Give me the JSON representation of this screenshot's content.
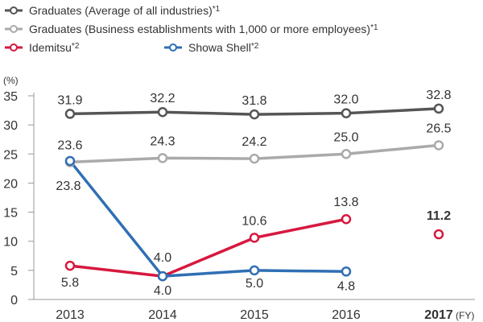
{
  "chart_data": {
    "type": "line",
    "x_unit": "(FY)",
    "y_unit": "(%)",
    "x": [
      "2013",
      "2014",
      "2015",
      "2016",
      "2017"
    ],
    "x_bold": [
      false,
      false,
      false,
      false,
      true
    ],
    "ylim": [
      0,
      35
    ],
    "yticks": [
      0,
      5,
      10,
      15,
      20,
      25,
      30,
      35
    ],
    "grid": false,
    "legend_position": "top-left",
    "series": [
      {
        "key": "grad_all",
        "name": "Graduates (Average of all industries)",
        "note": "*1",
        "color": "#555555",
        "values": [
          31.9,
          32.2,
          31.8,
          32.0,
          32.8
        ],
        "labels": [
          "31.9",
          "32.2",
          "31.8",
          "32.0",
          "32.8"
        ],
        "label_bold": [
          false,
          false,
          false,
          false,
          false
        ]
      },
      {
        "key": "grad_large",
        "name": "Graduates (Business establishments with 1,000 or more employees)",
        "note": "*1",
        "color": "#aaaaaa",
        "values": [
          23.6,
          24.3,
          24.2,
          25.0,
          26.5
        ],
        "labels": [
          "23.6",
          "24.3",
          "24.2",
          "25.0",
          "26.5"
        ],
        "label_bold": [
          false,
          false,
          false,
          false,
          false
        ]
      },
      {
        "key": "idemitsu",
        "name": "Idemitsu",
        "note": "*2",
        "color": "#d7183f",
        "values": [
          5.8,
          4.0,
          10.6,
          13.8,
          11.2
        ],
        "connect": [
          true,
          true,
          true,
          true,
          false
        ],
        "labels": [
          "5.8",
          "4.0",
          "10.6",
          "13.8",
          "11.2"
        ],
        "label_bold": [
          false,
          false,
          false,
          false,
          true
        ]
      },
      {
        "key": "showa",
        "name": "Showa Shell",
        "note": "*2",
        "color": "#2f6fb4",
        "values": [
          23.8,
          4.0,
          5.0,
          4.8,
          null
        ],
        "labels": [
          "23.8",
          "4.0",
          "5.0",
          "4.8",
          null
        ],
        "label_bold": [
          false,
          false,
          false,
          false,
          false
        ]
      }
    ]
  }
}
